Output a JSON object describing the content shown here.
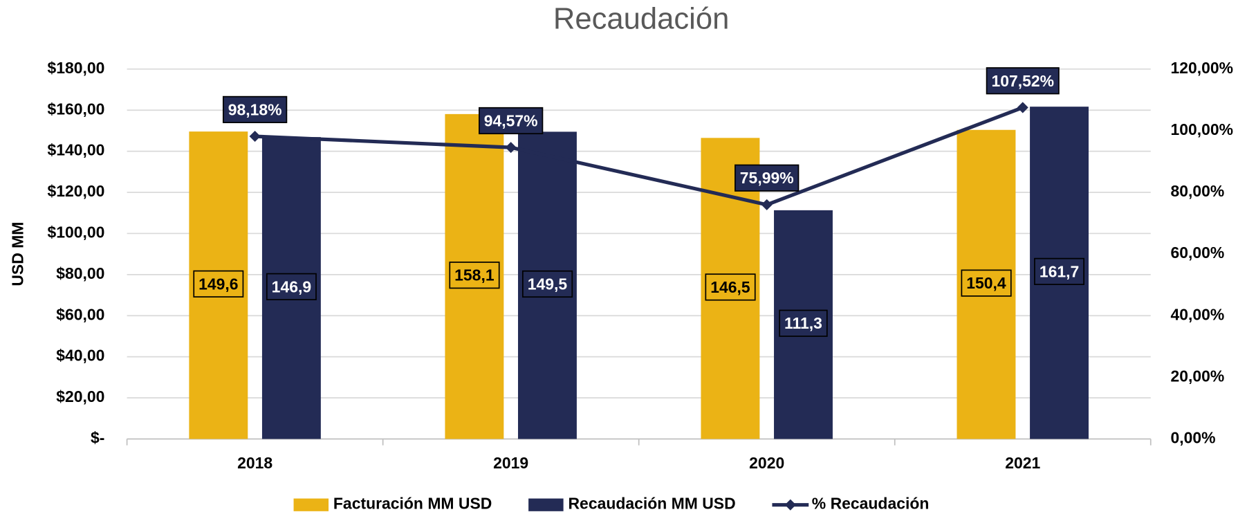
{
  "chart_data": {
    "type": "bar",
    "title": "Recaudación",
    "y_label": "USD MM",
    "categories": [
      "2018",
      "2019",
      "2020",
      "2021"
    ],
    "series": [
      {
        "name": "Facturación MM USD",
        "color": "#ebb315",
        "values": [
          149.6,
          158.1,
          146.5,
          150.4
        ],
        "value_labels": [
          "149,6",
          "158,1",
          "146,5",
          "150,4"
        ]
      },
      {
        "name": "Recaudación MM USD",
        "color": "#232b55",
        "values": [
          146.9,
          149.5,
          111.3,
          161.7
        ],
        "value_labels": [
          "146,9",
          "149,5",
          "111,3",
          "161,7"
        ]
      },
      {
        "name": "% Recaudación",
        "type": "line",
        "axis": "y2",
        "color": "#232b55",
        "values": [
          98.18,
          94.57,
          75.99,
          107.52
        ],
        "value_labels": [
          "98,18%",
          "94,57%",
          "75,99%",
          "107,52%"
        ]
      }
    ],
    "ylim": [
      0,
      180
    ],
    "yticks": [
      {
        "value": 0,
        "label": "$-"
      },
      {
        "value": 20,
        "label": "$20,00"
      },
      {
        "value": 40,
        "label": "$40,00"
      },
      {
        "value": 60,
        "label": "$60,00"
      },
      {
        "value": 80,
        "label": "$80,00"
      },
      {
        "value": 100,
        "label": "$100,00"
      },
      {
        "value": 120,
        "label": "$120,00"
      },
      {
        "value": 140,
        "label": "$140,00"
      },
      {
        "value": 160,
        "label": "$160,00"
      },
      {
        "value": 180,
        "label": "$180,00"
      }
    ],
    "y2lim": [
      0,
      120
    ],
    "y2ticks": [
      {
        "value": 0,
        "label": "0,00%"
      },
      {
        "value": 20,
        "label": "20,00%"
      },
      {
        "value": 40,
        "label": "40,00%"
      },
      {
        "value": 60,
        "label": "60,00%"
      },
      {
        "value": 80,
        "label": "80,00%"
      },
      {
        "value": 100,
        "label": "100,00%"
      },
      {
        "value": 120,
        "label": "120,00%"
      }
    ],
    "grid": true,
    "legend": "bottom"
  }
}
